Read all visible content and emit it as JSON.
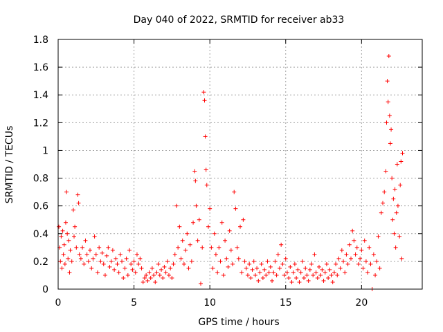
{
  "chart_data": {
    "type": "scatter",
    "title": "Day 040 of 2022, SRMTID for receiver ab33",
    "xlabel": "GPS time / hours",
    "ylabel": "SRMTID / TECUs",
    "xlim": [
      0,
      24
    ],
    "ylim": [
      0,
      1.8
    ],
    "x_ticks": [
      0,
      5,
      10,
      15,
      20
    ],
    "x_tick_labels": [
      "0",
      "5",
      "10",
      "15",
      "20"
    ],
    "y_ticks": [
      0,
      0.2,
      0.4,
      0.6,
      0.8,
      1.0,
      1.2,
      1.4,
      1.6,
      1.8
    ],
    "y_tick_labels": [
      "0",
      "0.2",
      "0.4",
      "0.6",
      "0.8",
      "1",
      "1.2",
      "1.4",
      "1.6",
      "1.8"
    ],
    "grid": true,
    "marker": "+",
    "color": "#ff0000",
    "series": [
      {
        "name": "SRMTID",
        "points": [
          [
            0.05,
            0.45
          ],
          [
            0.1,
            0.3
          ],
          [
            0.15,
            0.2
          ],
          [
            0.2,
            0.38
          ],
          [
            0.25,
            0.15
          ],
          [
            0.3,
            0.42
          ],
          [
            0.35,
            0.25
          ],
          [
            0.4,
            0.32
          ],
          [
            0.45,
            0.18
          ],
          [
            0.5,
            0.48
          ],
          [
            0.55,
            0.7
          ],
          [
            0.6,
            0.4
          ],
          [
            0.65,
            0.22
          ],
          [
            0.7,
            0.35
          ],
          [
            0.75,
            0.12
          ],
          [
            0.8,
            0.28
          ],
          [
            0.9,
            0.2
          ],
          [
            1.0,
            0.57
          ],
          [
            1.05,
            0.38
          ],
          [
            1.1,
            0.45
          ],
          [
            1.2,
            0.3
          ],
          [
            1.3,
            0.68
          ],
          [
            1.35,
            0.62
          ],
          [
            1.4,
            0.25
          ],
          [
            1.5,
            0.22
          ],
          [
            1.6,
            0.3
          ],
          [
            1.7,
            0.18
          ],
          [
            1.8,
            0.35
          ],
          [
            1.9,
            0.25
          ],
          [
            2.0,
            0.2
          ],
          [
            2.1,
            0.28
          ],
          [
            2.2,
            0.15
          ],
          [
            2.3,
            0.22
          ],
          [
            2.4,
            0.38
          ],
          [
            2.5,
            0.25
          ],
          [
            2.6,
            0.12
          ],
          [
            2.7,
            0.3
          ],
          [
            2.8,
            0.2
          ],
          [
            2.9,
            0.26
          ],
          [
            3.0,
            0.18
          ],
          [
            3.1,
            0.1
          ],
          [
            3.2,
            0.24
          ],
          [
            3.3,
            0.3
          ],
          [
            3.4,
            0.16
          ],
          [
            3.5,
            0.2
          ],
          [
            3.6,
            0.28
          ],
          [
            3.7,
            0.14
          ],
          [
            3.8,
            0.22
          ],
          [
            3.9,
            0.18
          ],
          [
            4.0,
            0.12
          ],
          [
            4.1,
            0.25
          ],
          [
            4.2,
            0.2
          ],
          [
            4.3,
            0.08
          ],
          [
            4.4,
            0.15
          ],
          [
            4.5,
            0.22
          ],
          [
            4.6,
            0.1
          ],
          [
            4.7,
            0.28
          ],
          [
            4.8,
            0.18
          ],
          [
            4.9,
            0.14
          ],
          [
            5.0,
            0.2
          ],
          [
            5.1,
            0.12
          ],
          [
            5.2,
            0.25
          ],
          [
            5.3,
            0.18
          ],
          [
            5.4,
            0.22
          ],
          [
            5.5,
            0.15
          ],
          [
            5.6,
            0.05
          ],
          [
            5.7,
            0.08
          ],
          [
            5.8,
            0.1
          ],
          [
            5.9,
            0.06
          ],
          [
            6.0,
            0.12
          ],
          [
            6.1,
            0.08
          ],
          [
            6.2,
            0.15
          ],
          [
            6.3,
            0.1
          ],
          [
            6.4,
            0.05
          ],
          [
            6.5,
            0.12
          ],
          [
            6.6,
            0.18
          ],
          [
            6.7,
            0.1
          ],
          [
            6.8,
            0.14
          ],
          [
            6.9,
            0.08
          ],
          [
            7.0,
            0.16
          ],
          [
            7.1,
            0.12
          ],
          [
            7.2,
            0.2
          ],
          [
            7.3,
            0.1
          ],
          [
            7.4,
            0.15
          ],
          [
            7.5,
            0.08
          ],
          [
            7.6,
            0.18
          ],
          [
            7.7,
            0.25
          ],
          [
            7.8,
            0.6
          ],
          [
            7.9,
            0.3
          ],
          [
            8.0,
            0.45
          ],
          [
            8.1,
            0.22
          ],
          [
            8.2,
            0.35
          ],
          [
            8.3,
            0.18
          ],
          [
            8.4,
            0.28
          ],
          [
            8.5,
            0.4
          ],
          [
            8.6,
            0.15
          ],
          [
            8.7,
            0.32
          ],
          [
            8.8,
            0.2
          ],
          [
            8.9,
            0.48
          ],
          [
            9.0,
            0.85
          ],
          [
            9.05,
            0.78
          ],
          [
            9.1,
            0.6
          ],
          [
            9.2,
            0.35
          ],
          [
            9.3,
            0.5
          ],
          [
            9.4,
            0.04
          ],
          [
            9.5,
            0.3
          ],
          [
            9.6,
            1.42
          ],
          [
            9.65,
            1.36
          ],
          [
            9.7,
            1.1
          ],
          [
            9.75,
            0.86
          ],
          [
            9.8,
            0.75
          ],
          [
            9.9,
            0.45
          ],
          [
            10.0,
            0.58
          ],
          [
            10.1,
            0.3
          ],
          [
            10.2,
            0.15
          ],
          [
            10.3,
            0.4
          ],
          [
            10.4,
            0.25
          ],
          [
            10.5,
            0.12
          ],
          [
            10.6,
            0.3
          ],
          [
            10.7,
            0.2
          ],
          [
            10.8,
            0.48
          ],
          [
            10.9,
            0.1
          ],
          [
            11.0,
            0.35
          ],
          [
            11.1,
            0.22
          ],
          [
            11.2,
            0.16
          ],
          [
            11.3,
            0.42
          ],
          [
            11.4,
            0.28
          ],
          [
            11.5,
            0.18
          ],
          [
            11.6,
            0.7
          ],
          [
            11.7,
            0.58
          ],
          [
            11.8,
            0.3
          ],
          [
            11.9,
            0.22
          ],
          [
            12.0,
            0.45
          ],
          [
            12.1,
            0.12
          ],
          [
            12.2,
            0.5
          ],
          [
            12.3,
            0.2
          ],
          [
            12.4,
            0.15
          ],
          [
            12.5,
            0.1
          ],
          [
            12.6,
            0.18
          ],
          [
            12.7,
            0.08
          ],
          [
            12.8,
            0.14
          ],
          [
            12.9,
            0.2
          ],
          [
            13.0,
            0.1
          ],
          [
            13.1,
            0.15
          ],
          [
            13.2,
            0.06
          ],
          [
            13.3,
            0.12
          ],
          [
            13.4,
            0.18
          ],
          [
            13.5,
            0.08
          ],
          [
            13.6,
            0.14
          ],
          [
            13.7,
            0.1
          ],
          [
            13.8,
            0.2
          ],
          [
            13.9,
            0.12
          ],
          [
            14.0,
            0.16
          ],
          [
            14.1,
            0.06
          ],
          [
            14.2,
            0.12
          ],
          [
            14.3,
            0.2
          ],
          [
            14.4,
            0.1
          ],
          [
            14.5,
            0.25
          ],
          [
            14.6,
            0.15
          ],
          [
            14.7,
            0.32
          ],
          [
            14.8,
            0.18
          ],
          [
            14.9,
            0.1
          ],
          [
            15.0,
            0.22
          ],
          [
            15.1,
            0.12
          ],
          [
            15.2,
            0.08
          ],
          [
            15.3,
            0.16
          ],
          [
            15.4,
            0.05
          ],
          [
            15.5,
            0.12
          ],
          [
            15.6,
            0.18
          ],
          [
            15.7,
            0.08
          ],
          [
            15.8,
            0.14
          ],
          [
            15.9,
            0.05
          ],
          [
            16.0,
            0.12
          ],
          [
            16.1,
            0.2
          ],
          [
            16.2,
            0.08
          ],
          [
            16.3,
            0.15
          ],
          [
            16.4,
            0.1
          ],
          [
            16.5,
            0.06
          ],
          [
            16.6,
            0.14
          ],
          [
            16.7,
            0.18
          ],
          [
            16.8,
            0.1
          ],
          [
            16.9,
            0.25
          ],
          [
            17.0,
            0.12
          ],
          [
            17.1,
            0.08
          ],
          [
            17.2,
            0.16
          ],
          [
            17.3,
            0.1
          ],
          [
            17.4,
            0.14
          ],
          [
            17.5,
            0.06
          ],
          [
            17.6,
            0.12
          ],
          [
            17.7,
            0.18
          ],
          [
            17.8,
            0.08
          ],
          [
            17.9,
            0.14
          ],
          [
            18.0,
            0.1
          ],
          [
            18.1,
            0.05
          ],
          [
            18.2,
            0.12
          ],
          [
            18.3,
            0.18
          ],
          [
            18.4,
            0.1
          ],
          [
            18.5,
            0.22
          ],
          [
            18.6,
            0.15
          ],
          [
            18.7,
            0.28
          ],
          [
            18.8,
            0.2
          ],
          [
            18.9,
            0.12
          ],
          [
            19.0,
            0.25
          ],
          [
            19.1,
            0.18
          ],
          [
            19.2,
            0.32
          ],
          [
            19.3,
            0.22
          ],
          [
            19.4,
            0.42
          ],
          [
            19.5,
            0.35
          ],
          [
            19.6,
            0.25
          ],
          [
            19.7,
            0.3
          ],
          [
            19.8,
            0.18
          ],
          [
            19.9,
            0.22
          ],
          [
            20.0,
            0.28
          ],
          [
            20.1,
            0.15
          ],
          [
            20.2,
            0.35
          ],
          [
            20.3,
            0.2
          ],
          [
            20.4,
            0.12
          ],
          [
            20.5,
            0.3
          ],
          [
            20.6,
            0.18
          ],
          [
            20.7,
            0.0
          ],
          [
            20.8,
            0.25
          ],
          [
            20.9,
            0.1
          ],
          [
            21.0,
            0.2
          ],
          [
            21.1,
            0.38
          ],
          [
            21.2,
            0.15
          ],
          [
            21.3,
            0.55
          ],
          [
            21.4,
            0.62
          ],
          [
            21.5,
            0.7
          ],
          [
            21.6,
            0.85
          ],
          [
            21.65,
            1.2
          ],
          [
            21.7,
            1.5
          ],
          [
            21.75,
            1.35
          ],
          [
            21.8,
            1.68
          ],
          [
            21.85,
            1.25
          ],
          [
            21.9,
            1.05
          ],
          [
            21.95,
            1.15
          ],
          [
            22.0,
            0.8
          ],
          [
            22.05,
            0.5
          ],
          [
            22.1,
            0.65
          ],
          [
            22.15,
            0.4
          ],
          [
            22.2,
            0.72
          ],
          [
            22.25,
            0.3
          ],
          [
            22.3,
            0.55
          ],
          [
            22.35,
            0.9
          ],
          [
            22.4,
            0.6
          ],
          [
            22.5,
            0.38
          ],
          [
            22.55,
            0.75
          ],
          [
            22.6,
            0.92
          ],
          [
            22.65,
            0.22
          ],
          [
            22.7,
            0.98
          ]
        ]
      }
    ]
  }
}
